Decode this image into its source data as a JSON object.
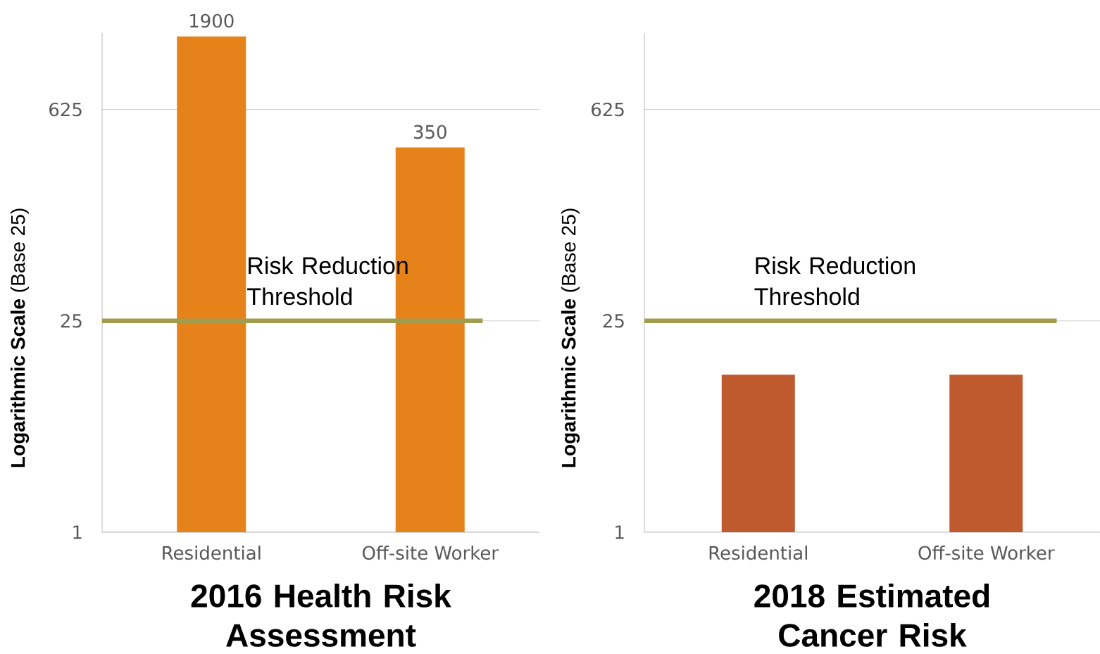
{
  "chart_data": [
    {
      "type": "bar",
      "title": "2016 Health Risk Assessment",
      "ylabel": "**Logarithmic Scale** (Base 25)",
      "categories": [
        "Residential",
        "Off-site Worker"
      ],
      "values": [
        1900,
        350
      ],
      "value_labels": [
        "1900",
        "350"
      ],
      "color": "#e6821a",
      "log": true,
      "ylim": [
        1,
        2000
      ],
      "yticks": [
        1,
        25,
        625
      ],
      "grid": "y",
      "ref_lines": [
        {
          "axis": "y",
          "value": 25,
          "label": "Risk Reduction Threshold",
          "color": "#a29c4e"
        }
      ]
    },
    {
      "type": "bar",
      "title": "2018 Estimated Cancer Risk",
      "ylabel": "**Logarithmic Scale** (Base 25)",
      "categories": [
        "Residential",
        "Off-site Worker"
      ],
      "values": [
        11,
        11
      ],
      "color": "#be5a2e",
      "log": true,
      "ylim": [
        1,
        2000
      ],
      "yticks": [
        1,
        25,
        625
      ],
      "grid": "y",
      "ref_lines": [
        {
          "axis": "y",
          "value": 25,
          "label": "Risk Reduction Threshold",
          "color": "#a29c4e"
        }
      ]
    }
  ]
}
